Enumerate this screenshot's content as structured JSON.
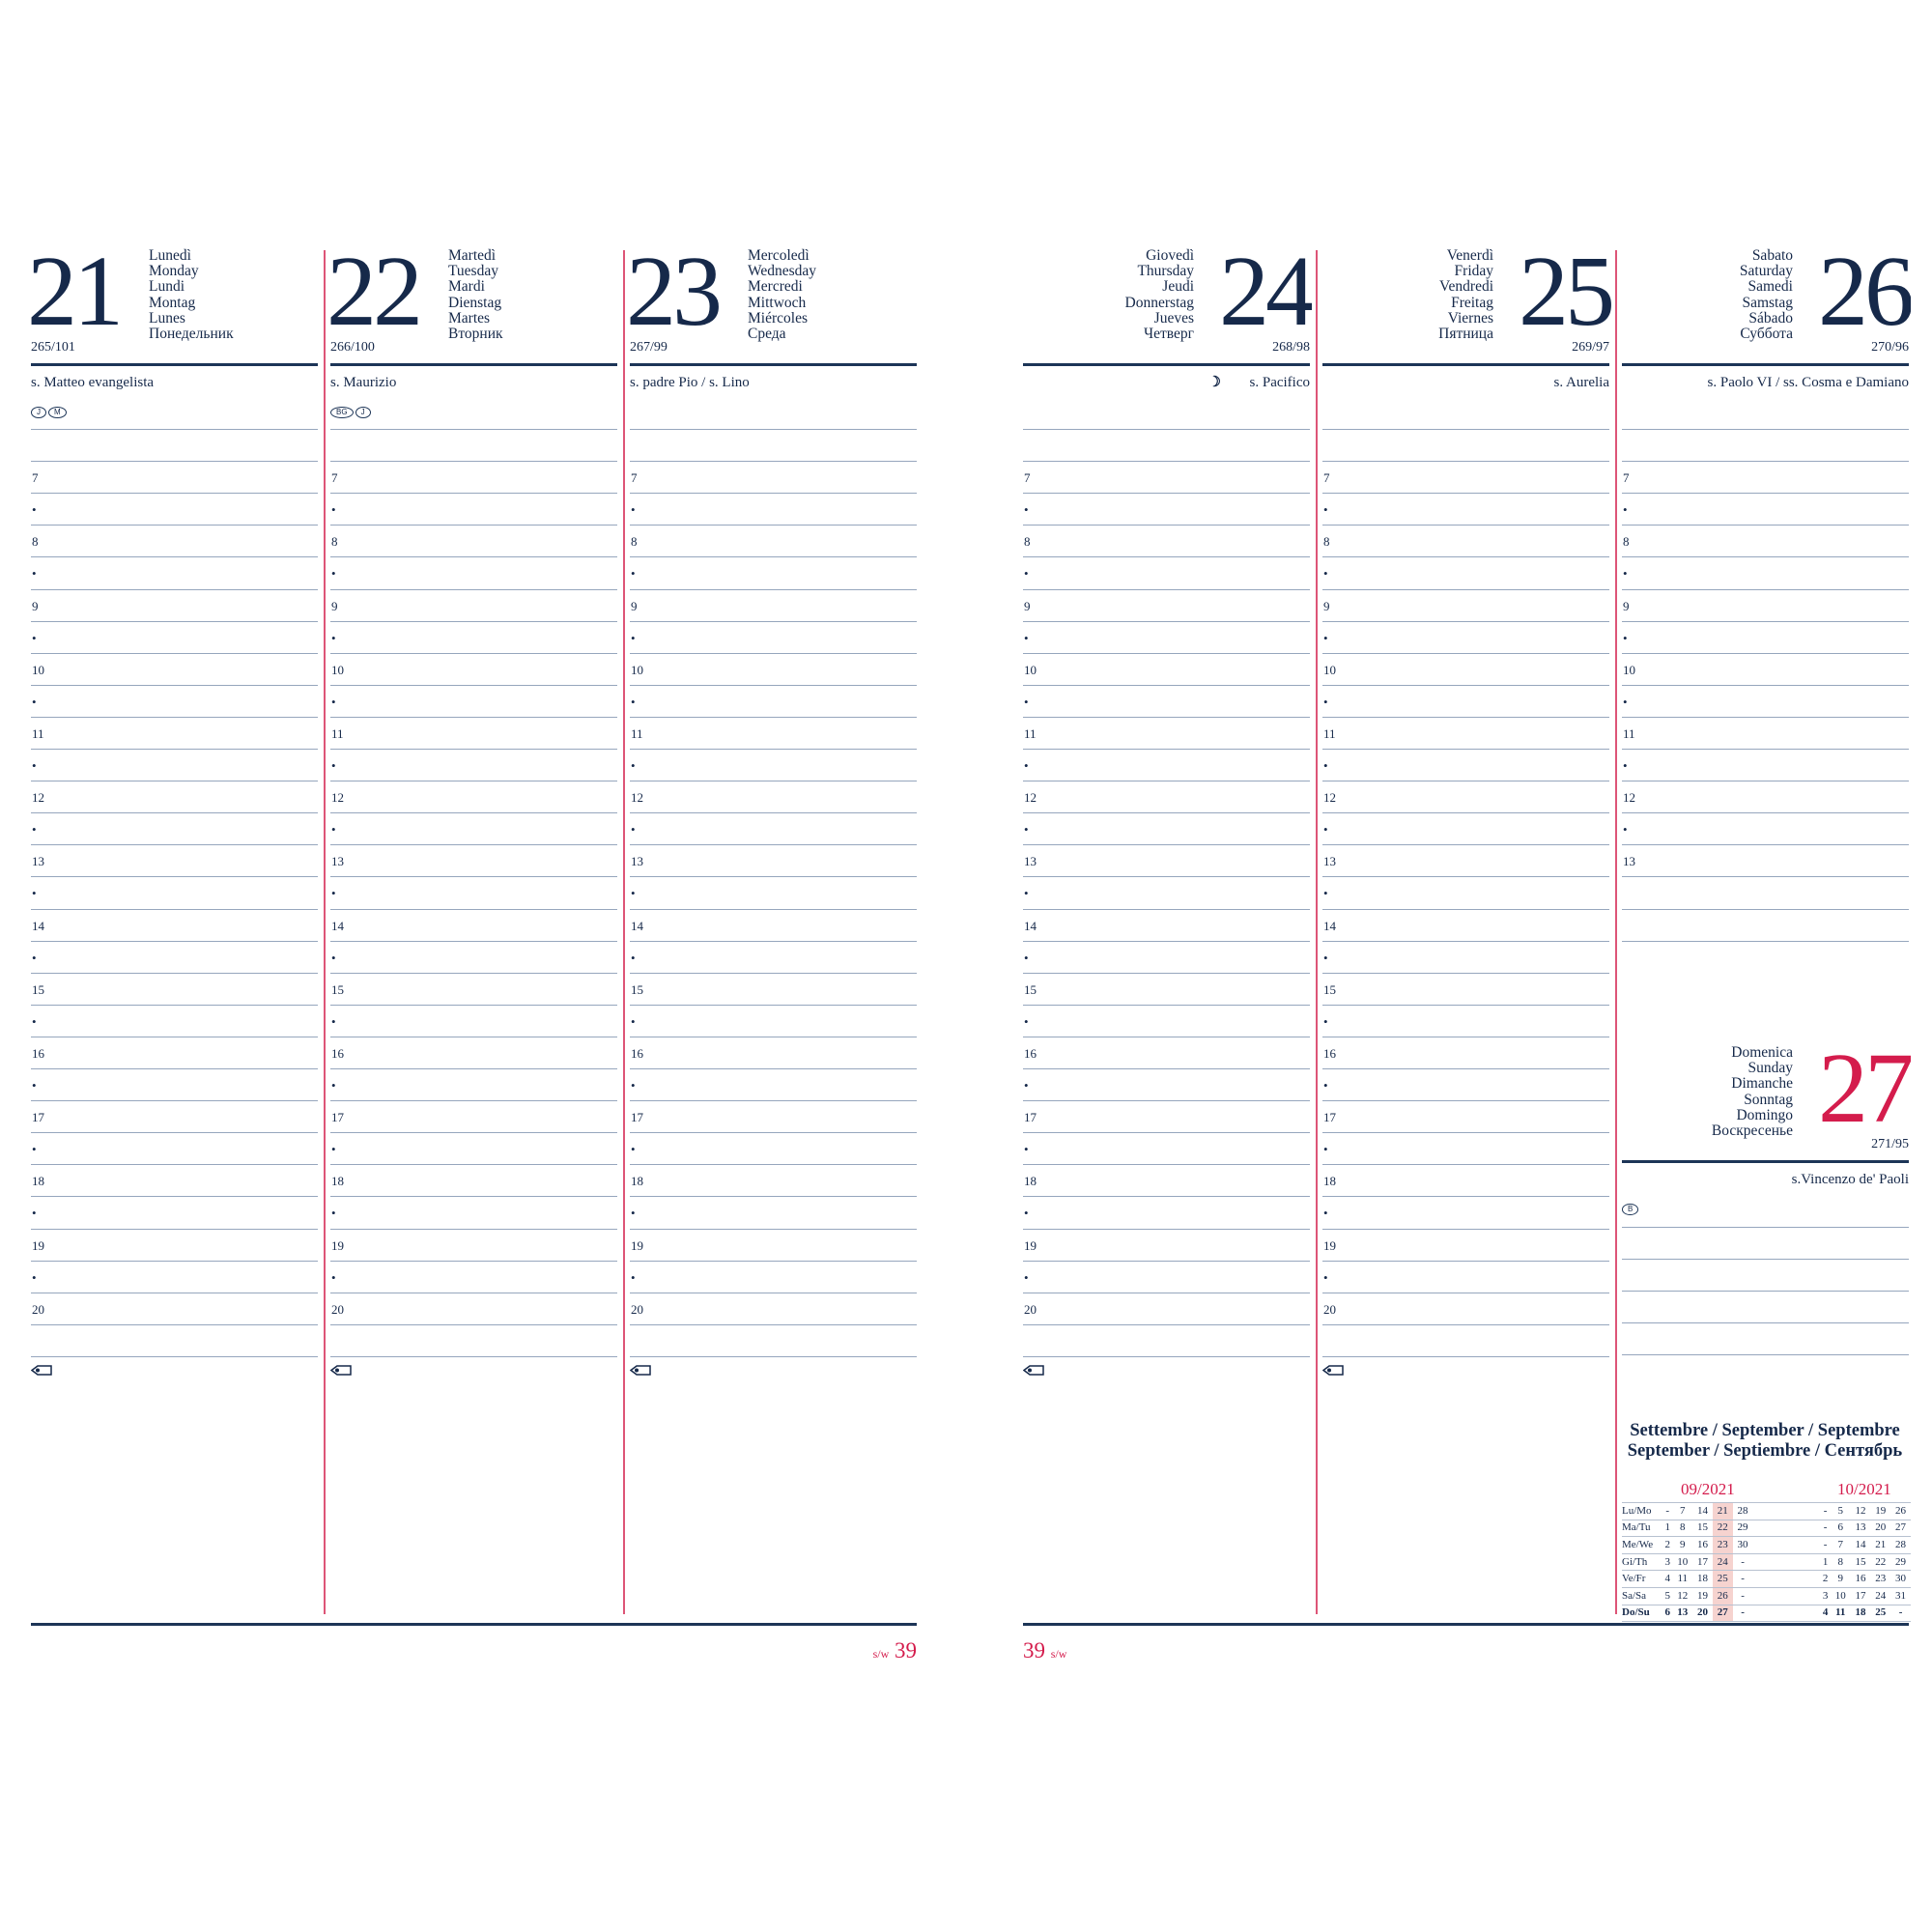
{
  "colors": {
    "ink": "#16294a",
    "accent": "#d41c4c",
    "grid": "#96a6bd",
    "highlight": "#f6d3cf"
  },
  "hour_slots": [
    "7",
    "•",
    "8",
    "•",
    "9",
    "•",
    "10",
    "•",
    "11",
    "•",
    "12",
    "•",
    "13",
    "•",
    "14",
    "•",
    "15",
    "•",
    "16",
    "•",
    "17",
    "•",
    "18",
    "•",
    "19",
    "•",
    "20"
  ],
  "saturday_slots": [
    "7",
    "•",
    "8",
    "•",
    "9",
    "•",
    "10",
    "•",
    "11",
    "•",
    "12",
    "•",
    "13"
  ],
  "days": [
    {
      "num": "21",
      "names": [
        "Lunedì",
        "Monday",
        "Lundi",
        "Montag",
        "Lunes",
        "Понедельник"
      ],
      "code": "265/101",
      "saint": "s. Matteo evangelista",
      "badges": [
        "J",
        "M"
      ]
    },
    {
      "num": "22",
      "names": [
        "Martedì",
        "Tuesday",
        "Mardi",
        "Dienstag",
        "Martes",
        "Вторник"
      ],
      "code": "266/100",
      "saint": "s. Maurizio",
      "badges": [
        "BG",
        "J"
      ]
    },
    {
      "num": "23",
      "names": [
        "Mercoledì",
        "Wednesday",
        "Mercredi",
        "Mittwoch",
        "Miércoles",
        "Среда"
      ],
      "code": "267/99",
      "saint": "s. padre Pio / s. Lino",
      "badges": []
    },
    {
      "num": "24",
      "names": [
        "Giovedì",
        "Thursday",
        "Jeudi",
        "Donnerstag",
        "Jueves",
        "Четверг"
      ],
      "code": "268/98",
      "saint": "s. Pacifico",
      "moon": "last-quarter-moon-icon",
      "badges": []
    },
    {
      "num": "25",
      "names": [
        "Venerdì",
        "Friday",
        "Vendredi",
        "Freitag",
        "Viernes",
        "Пятница"
      ],
      "code": "269/97",
      "saint": "s. Aurelia",
      "badges": []
    },
    {
      "num": "26",
      "names": [
        "Sabato",
        "Saturday",
        "Samedi",
        "Samstag",
        "Sábado",
        "Суббота"
      ],
      "code": "270/96",
      "saint": "s. Paolo VI / ss. Cosma e Damiano",
      "badges": []
    },
    {
      "num": "27",
      "names": [
        "Domenica",
        "Sunday",
        "Dimanche",
        "Sonntag",
        "Domingo",
        "Воскресенье"
      ],
      "code": "271/95",
      "saint": "s.Vincenzo de' Paoli",
      "badges": [
        "B"
      ]
    }
  ],
  "mini_calendar": {
    "title": [
      "Settembre / September / Septembre",
      "September / Septiembre / Сентябрь"
    ],
    "months": [
      "09/2021",
      "10/2021"
    ],
    "rows": [
      {
        "label": "Lu/Mo",
        "sep": [
          "-",
          "7",
          "14",
          "21",
          "28"
        ],
        "oct": [
          "-",
          "5",
          "12",
          "19",
          "26"
        ]
      },
      {
        "label": "Ma/Tu",
        "sep": [
          "1",
          "8",
          "15",
          "22",
          "29"
        ],
        "oct": [
          "-",
          "6",
          "13",
          "20",
          "27"
        ]
      },
      {
        "label": "Me/We",
        "sep": [
          "2",
          "9",
          "16",
          "23",
          "30"
        ],
        "oct": [
          "-",
          "7",
          "14",
          "21",
          "28"
        ]
      },
      {
        "label": "Gi/Th",
        "sep": [
          "3",
          "10",
          "17",
          "24",
          "-"
        ],
        "oct": [
          "1",
          "8",
          "15",
          "22",
          "29"
        ]
      },
      {
        "label": "Ve/Fr",
        "sep": [
          "4",
          "11",
          "18",
          "25",
          "-"
        ],
        "oct": [
          "2",
          "9",
          "16",
          "23",
          "30"
        ]
      },
      {
        "label": "Sa/Sa",
        "sep": [
          "5",
          "12",
          "19",
          "26",
          "-"
        ],
        "oct": [
          "3",
          "10",
          "17",
          "24",
          "31"
        ]
      },
      {
        "label": "Do/Su",
        "sep": [
          "6",
          "13",
          "20",
          "27",
          "-"
        ],
        "oct": [
          "4",
          "11",
          "18",
          "25",
          "-"
        ]
      }
    ],
    "highlight_week": "21-27"
  },
  "footer": {
    "week_label": "s/w",
    "week_number": "39"
  },
  "memo_icon": "tag-icon"
}
